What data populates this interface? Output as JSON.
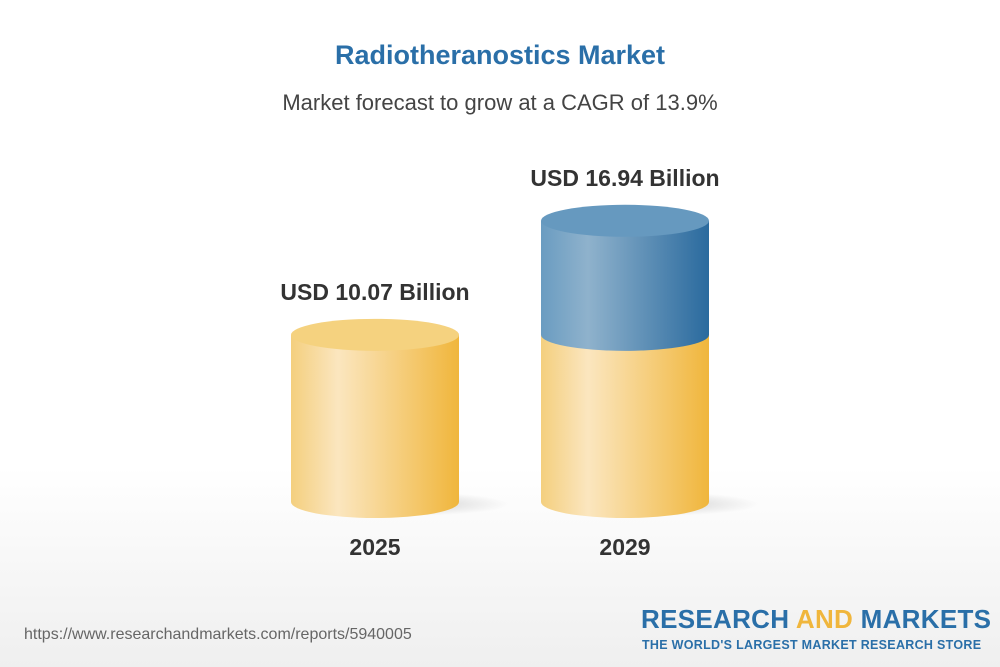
{
  "title": "Radiotheranostics Market",
  "subtitle": "Market forecast to grow at a CAGR of 13.9%",
  "chart_data": {
    "type": "bar",
    "style": "3d-cylinder",
    "categories": [
      "2025",
      "2029"
    ],
    "values": [
      10.07,
      16.94
    ],
    "data_labels": [
      "USD 10.07 Billion",
      "USD 16.94 Billion"
    ],
    "unit": "USD Billion",
    "colors": {
      "base": "#f2c35c",
      "growth": "#3f7fb0"
    }
  },
  "footer": {
    "url": "https://www.researchandmarkets.com/reports/5940005"
  },
  "logo": {
    "part1": "RESEARCH ",
    "part2": "AND",
    "part3": " MARKETS",
    "tagline": "THE WORLD'S LARGEST MARKET RESEARCH STORE"
  }
}
